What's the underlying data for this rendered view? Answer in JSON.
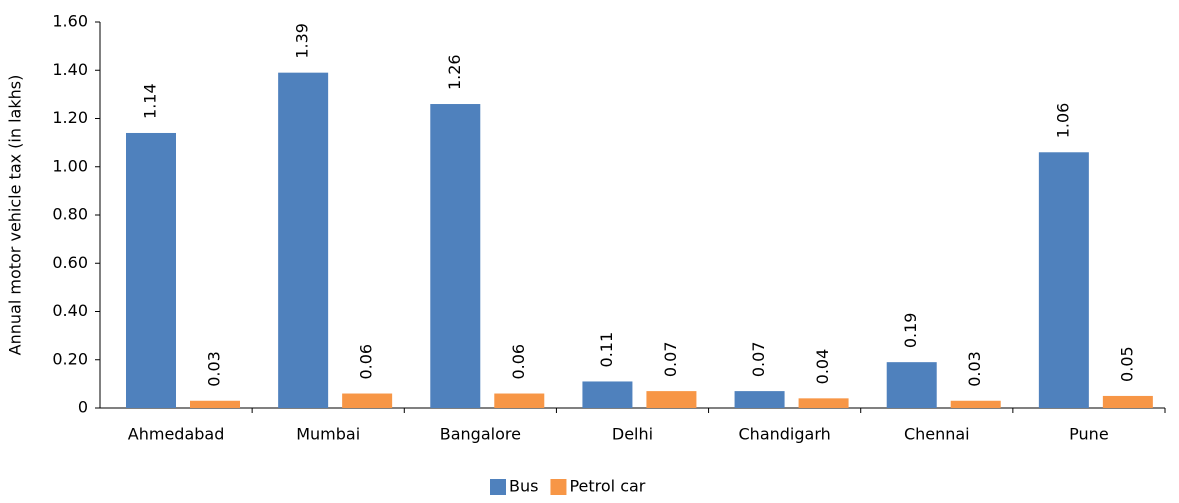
{
  "chart_data": {
    "type": "bar",
    "y_label": "Annual motor vehicle tax  (in lakhs)",
    "categories": [
      "Ahmedabad",
      "Mumbai",
      "Bangalore",
      "Delhi",
      "Chandigarh",
      "Chennai",
      "Pune"
    ],
    "series": [
      {
        "name": "Bus",
        "color": "#4f81bd",
        "values": [
          1.14,
          1.39,
          1.26,
          0.11,
          0.07,
          0.19,
          1.06
        ]
      },
      {
        "name": "Petrol car",
        "color": "#f79646",
        "values": [
          0.03,
          0.06,
          0.06,
          0.07,
          0.04,
          0.03,
          0.05
        ]
      }
    ],
    "ylim": [
      0,
      1.6
    ],
    "yticks": [
      0,
      {
        "value": 0.2,
        "label": "0.20"
      },
      {
        "value": 0.4,
        "label": "0.40"
      },
      {
        "value": 0.6,
        "label": "0.60"
      },
      {
        "value": 0.8,
        "label": "0.80"
      },
      {
        "value": 1.0,
        "label": "1.00"
      },
      {
        "value": 1.2,
        "label": "1.20"
      },
      {
        "value": 1.4,
        "label": "1.40"
      },
      {
        "value": 1.6,
        "label": "1.60"
      }
    ],
    "legend": "bottom"
  }
}
